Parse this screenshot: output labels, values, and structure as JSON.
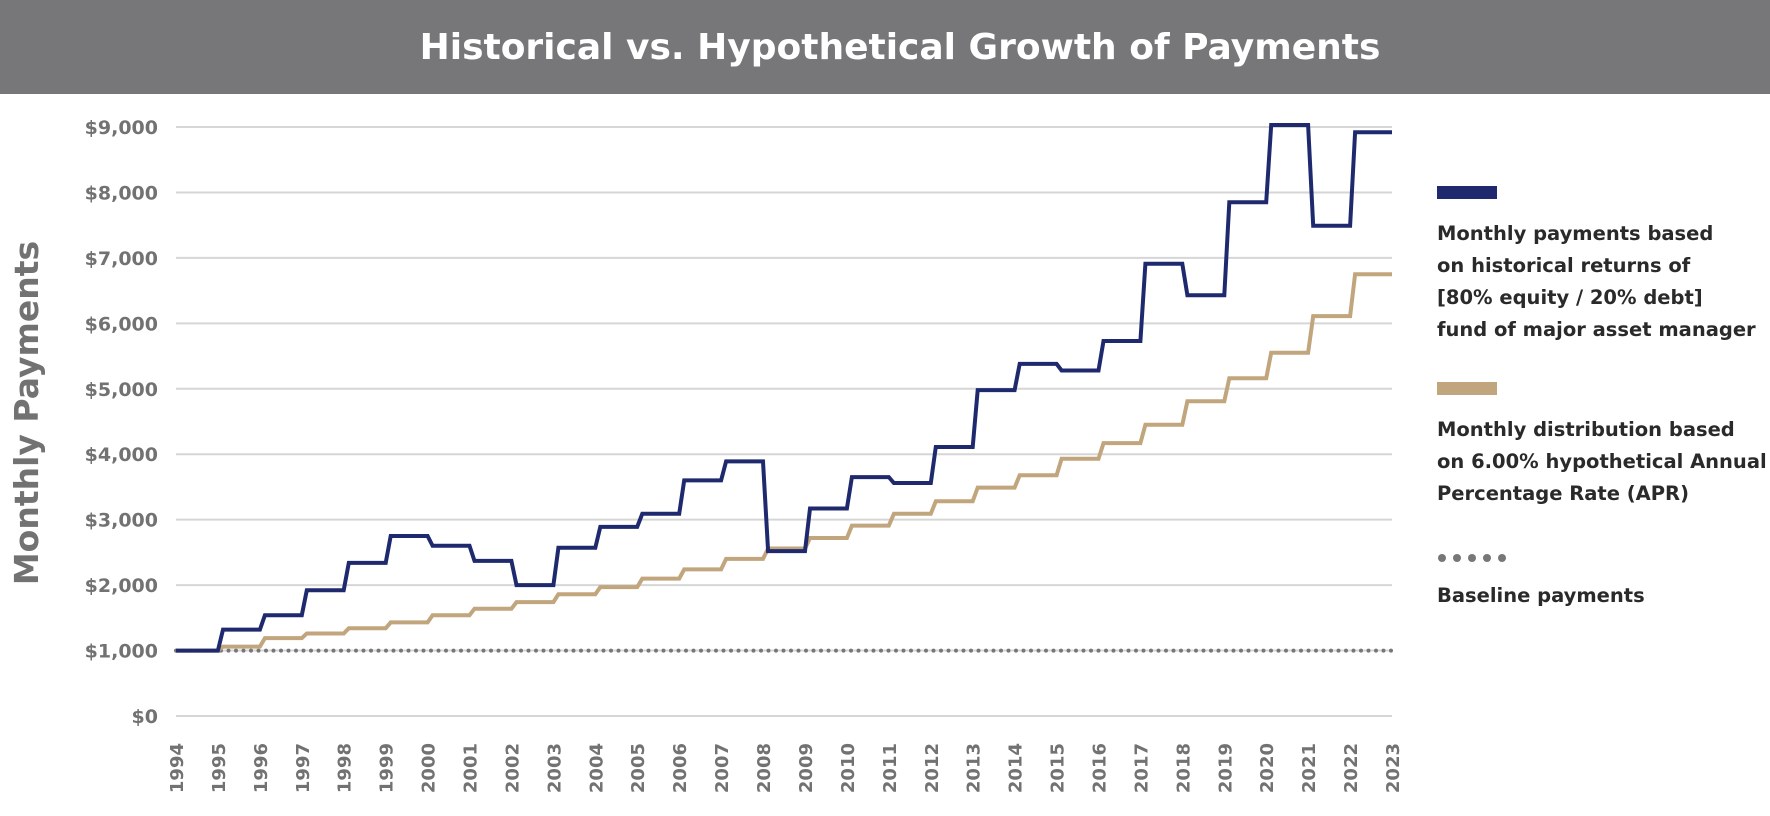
{
  "colors": {
    "banner": "#77777a",
    "historical": "#1f2a6e",
    "hypothetical": "#c1a57d",
    "baseline": "#77777a",
    "grid": "#d6d6d6",
    "tick_text": "#727272"
  },
  "chart_data": {
    "type": "line",
    "title": "Historical vs. Hypothetical Growth of Payments",
    "ylabel": "Monthly Payments",
    "xlabel": "",
    "ylim": [
      0,
      9500
    ],
    "xlim": [
      1994,
      2023
    ],
    "grid": true,
    "legend_position": "right",
    "x_ticks": [
      "1994",
      "1995",
      "1996",
      "1997",
      "1998",
      "1999",
      "2000",
      "2001",
      "2002",
      "2003",
      "2004",
      "2005",
      "2006",
      "2007",
      "2008",
      "2009",
      "2010",
      "2011",
      "2012",
      "2013",
      "2014",
      "2015",
      "2016",
      "2017",
      "2018",
      "2019",
      "2020",
      "2021",
      "2022",
      "2023"
    ],
    "y_ticks": [
      {
        "value": 0,
        "label": "$0"
      },
      {
        "value": 1000,
        "label": "$1,000"
      },
      {
        "value": 2000,
        "label": "$2,000"
      },
      {
        "value": 3000,
        "label": "$3,000"
      },
      {
        "value": 4000,
        "label": "$4,000"
      },
      {
        "value": 5000,
        "label": "$5,000"
      },
      {
        "value": 6000,
        "label": "$6,000"
      },
      {
        "value": 7000,
        "label": "$7,000"
      },
      {
        "value": 8000,
        "label": "$8,000"
      },
      {
        "value": 9000,
        "label": "$9,000"
      }
    ],
    "series": [
      {
        "name": "Monthly payments based on historical returns of [80% equity / 20% debt] fund of major asset manager",
        "style": "step",
        "x": [
          1994,
          1995,
          1996,
          1997,
          1998,
          1999,
          2000,
          2001,
          2002,
          2003,
          2004,
          2005,
          2006,
          2007,
          2008,
          2009,
          2010,
          2011,
          2012,
          2013,
          2014,
          2015,
          2016,
          2017,
          2018,
          2019,
          2020,
          2021,
          2022,
          2023
        ],
        "values": [
          1000,
          1320,
          1540,
          1920,
          2340,
          2750,
          2600,
          2370,
          2000,
          2570,
          2890,
          3090,
          3600,
          3890,
          2520,
          3170,
          3650,
          3560,
          4110,
          4980,
          5380,
          5280,
          5730,
          6910,
          6430,
          7850,
          9030,
          7490,
          8920,
          8920
        ]
      },
      {
        "name": "Monthly distribution based on 6.00% hypothetical Annual Percentage Rate (APR)",
        "style": "step",
        "x": [
          1994,
          1995,
          1996,
          1997,
          1998,
          1999,
          2000,
          2001,
          2002,
          2003,
          2004,
          2005,
          2006,
          2007,
          2008,
          2009,
          2010,
          2011,
          2012,
          2013,
          2014,
          2015,
          2016,
          2017,
          2018,
          2019,
          2020,
          2021,
          2022,
          2023
        ],
        "values": [
          1000,
          1060,
          1190,
          1260,
          1340,
          1430,
          1540,
          1640,
          1740,
          1860,
          1970,
          2100,
          2240,
          2400,
          2560,
          2720,
          2910,
          3090,
          3280,
          3490,
          3680,
          3930,
          4170,
          4450,
          4810,
          5160,
          5550,
          6110,
          6750,
          6750
        ]
      },
      {
        "name": "Baseline payments",
        "style": "dotted",
        "x": [
          1994,
          2023
        ],
        "values": [
          1000,
          1000
        ]
      }
    ]
  },
  "legend": {
    "historical": "Monthly payments based\non historical returns of\n[80% equity / 20% debt]\nfund of major asset manager",
    "hypothetical": "Monthly distribution based\non 6.00% hypothetical Annual\nPercentage Rate (APR)",
    "baseline": "Baseline payments"
  }
}
